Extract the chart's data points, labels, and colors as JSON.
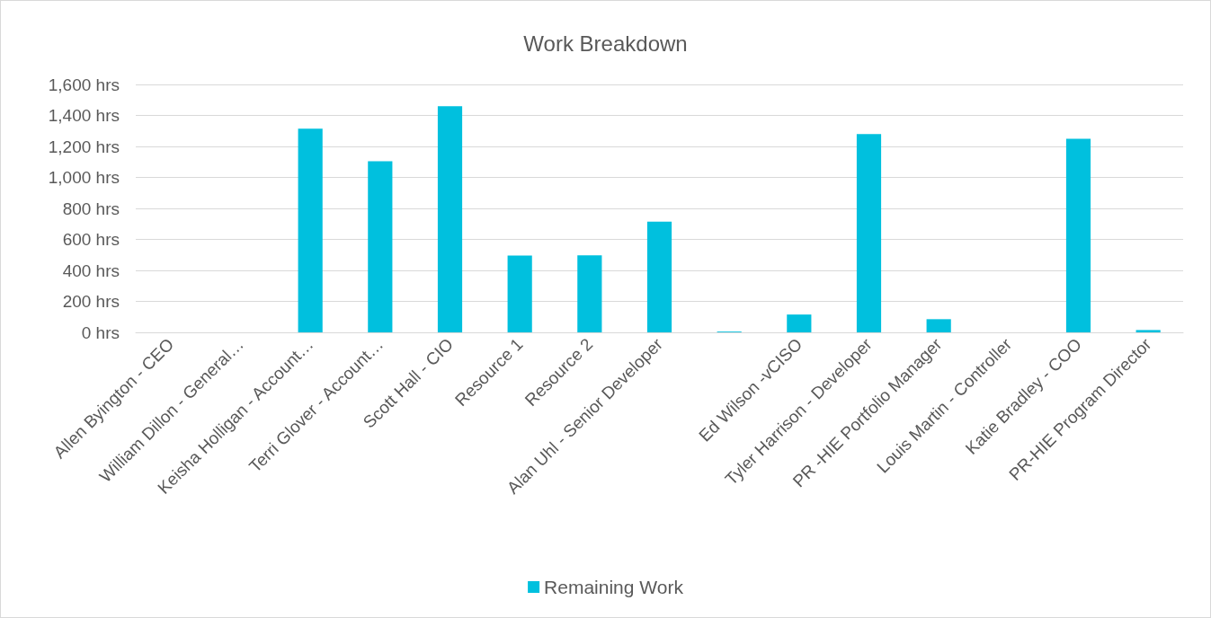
{
  "chart_data": {
    "type": "bar",
    "title": "Work Breakdown",
    "categories": [
      "Allen Byington - CEO",
      "William Dillon - General…",
      "Keisha Holligan - Account…",
      "Terri Glover - Account…",
      "Scott Hall - CIO",
      "Resource 1",
      "Resource 2",
      "Alan Uhl - Senior Developer",
      null,
      "Ed Wilson -vCISO",
      "Tyler Harrison - Developer",
      "PR -HIE Portfolio Manager",
      "Louis Martin - Controller",
      "Katie Bradley - COO",
      "PR-HIE Program Director"
    ],
    "series": [
      {
        "name": "Remaining Work",
        "color": "#00c0de",
        "values": [
          null,
          null,
          1315,
          1105,
          1460,
          495,
          497,
          715,
          5,
          115,
          1280,
          85,
          null,
          1250,
          15
        ]
      }
    ],
    "ylim": [
      0,
      1600
    ],
    "yticks": [
      {
        "value": 0,
        "label": "0 hrs"
      },
      {
        "value": 200,
        "label": "200 hrs"
      },
      {
        "value": 400,
        "label": "400 hrs"
      },
      {
        "value": 600,
        "label": "600 hrs"
      },
      {
        "value": 800,
        "label": "800 hrs"
      },
      {
        "value": 1000,
        "label": "1,000 hrs"
      },
      {
        "value": 1200,
        "label": "1,200 hrs"
      },
      {
        "value": 1400,
        "label": "1,400 hrs"
      },
      {
        "value": 1600,
        "label": "1,600 hrs"
      }
    ],
    "grid": "y",
    "legend": "bottom"
  }
}
